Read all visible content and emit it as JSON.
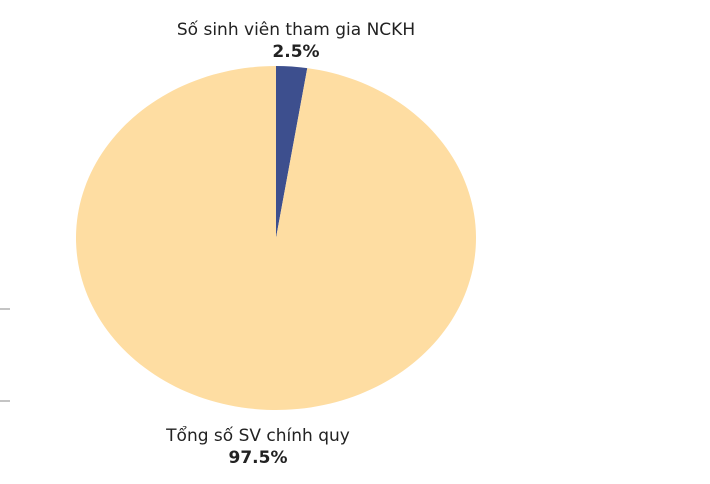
{
  "chart_data": {
    "type": "pie",
    "title": "",
    "start_angle": "top",
    "direction": "clockwise",
    "slices": [
      {
        "label": "Số sinh viên tham gia NCKH",
        "value": 2.5,
        "value_label": "2.5%",
        "color": "#3d4f8e"
      },
      {
        "label": "Tổng số SV chính quy",
        "value": 97.5,
        "value_label": "97.5%",
        "color": "#fedda2"
      }
    ]
  }
}
